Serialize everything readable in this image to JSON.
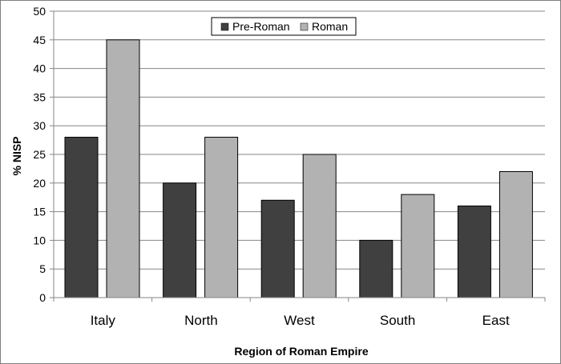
{
  "chart_data": {
    "type": "bar",
    "title": "",
    "categories": [
      "Italy",
      "North",
      "West",
      "South",
      "East"
    ],
    "series": [
      {
        "name": "Pre-Roman",
        "values": [
          28,
          20,
          17,
          10,
          16
        ],
        "color": "#404040"
      },
      {
        "name": "Roman",
        "values": [
          45,
          28,
          25,
          18,
          22
        ],
        "color": "#b2b2b2"
      }
    ],
    "xlabel": "Region of Roman Empire",
    "ylabel": "% NISP",
    "ylim": [
      0,
      50
    ],
    "yticks": [
      0,
      5,
      10,
      15,
      20,
      25,
      30,
      35,
      40,
      45,
      50
    ],
    "grid": "horizontal",
    "legend_position": "top-center"
  }
}
